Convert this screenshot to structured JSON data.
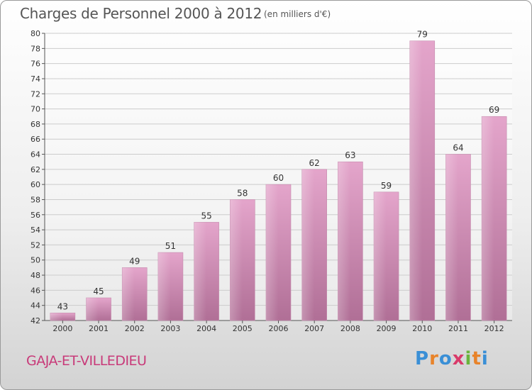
{
  "title": "Charges de Personnel 2000 à 2012",
  "unit_note": "(en milliers d'€)",
  "commune": "GAJA-ET-VILLEDIEU",
  "logo": {
    "text": "Proxiti",
    "letters": [
      "P",
      "r",
      "o",
      "x",
      "i",
      "t",
      "i"
    ],
    "colors": [
      "#3a8fd6",
      "#e8832a",
      "#3a8fd6",
      "#d93a6a",
      "#6ab43c",
      "#e8832a",
      "#3a8fd6"
    ]
  },
  "colors": {
    "bar_top": "#e4a5cb",
    "bar_bottom": "#b06f96",
    "commune": "#c83a79",
    "grid": "#cccccc"
  },
  "chart_data": {
    "type": "bar",
    "title": "Charges de Personnel 2000 à 2012",
    "categories": [
      "2000",
      "2001",
      "2002",
      "2003",
      "2004",
      "2005",
      "2006",
      "2007",
      "2008",
      "2009",
      "2010",
      "2011",
      "2012"
    ],
    "values": [
      43,
      45,
      49,
      51,
      55,
      58,
      60,
      62,
      63,
      59,
      79,
      64,
      69
    ],
    "ylim": [
      42,
      80
    ],
    "yticks": [
      42,
      44,
      46,
      48,
      50,
      52,
      54,
      56,
      58,
      60,
      62,
      64,
      66,
      68,
      70,
      72,
      74,
      76,
      78,
      80
    ],
    "grid": true,
    "xlabel": "",
    "ylabel": ""
  }
}
